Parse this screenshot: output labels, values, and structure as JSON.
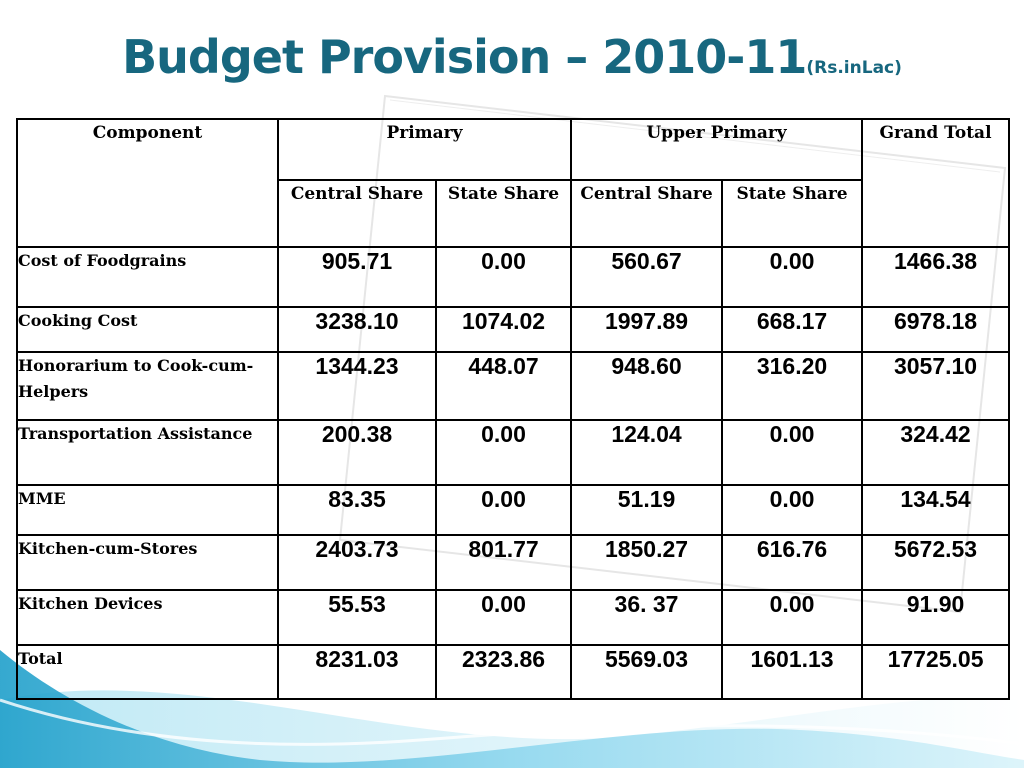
{
  "slide": {
    "title": "Budget Provision – 2010-11",
    "unit": "(Rs.inLac)"
  },
  "table": {
    "header": {
      "component": "Component",
      "primary": "Primary",
      "upper_primary": "Upper Primary",
      "grand_total": "Grand Total",
      "central_share": "Central Share",
      "state_share": "State Share"
    },
    "rows": [
      {
        "label": "Cost of Foodgrains",
        "p_central": "905.71",
        "p_state": "0.00",
        "up_central": "560.67",
        "up_state": "0.00",
        "grand_total": "1466.38"
      },
      {
        "label": "Cooking Cost",
        "p_central": "3238.10",
        "p_state": "1074.02",
        "up_central": "1997.89",
        "up_state": "668.17",
        "grand_total": "6978.18"
      },
      {
        "label": "Honorarium to Cook-cum-Helpers",
        "p_central": "1344.23",
        "p_state": "448.07",
        "up_central": "948.60",
        "up_state": "316.20",
        "grand_total": "3057.10"
      },
      {
        "label": "Transportation Assistance",
        "p_central": "200.38",
        "p_state": "0.00",
        "up_central": "124.04",
        "up_state": "0.00",
        "grand_total": "324.42"
      },
      {
        "label": "MME",
        "p_central": "83.35",
        "p_state": "0.00",
        "up_central": "51.19",
        "up_state": "0.00",
        "grand_total": "134.54"
      },
      {
        "label": "Kitchen-cum-Stores",
        "p_central": "2403.73",
        "p_state": "801.77",
        "up_central": "1850.27",
        "up_state": "616.76",
        "grand_total": "5672.53"
      },
      {
        "label": "Kitchen Devices",
        "p_central": "55.53",
        "p_state": "0.00",
        "up_central": "36. 37",
        "up_state": "0.00",
        "grand_total": "91.90"
      },
      {
        "label": "Total",
        "p_central": "8231.03",
        "p_state": "2323.86",
        "up_central": "5569.03",
        "up_state": "1601.13",
        "grand_total": "17725.05"
      }
    ]
  },
  "colors": {
    "title": "#17677f",
    "wave_dark": "#2fa9cf",
    "wave_light": "#bfe9f5",
    "border": "#000000"
  }
}
